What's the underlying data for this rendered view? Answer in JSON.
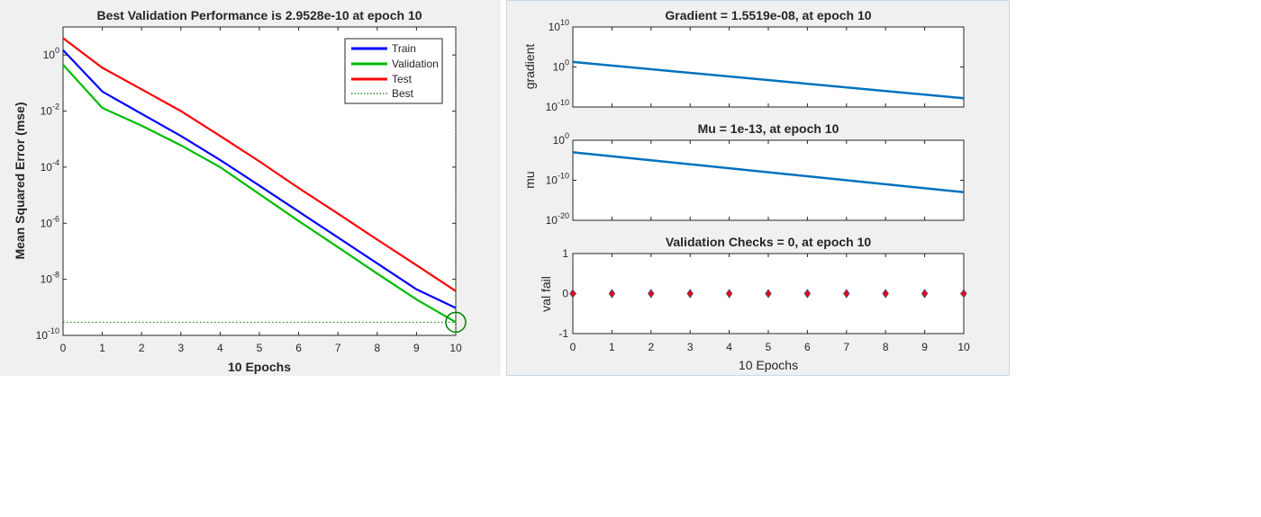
{
  "colors": {
    "train": "#0000ff",
    "validation": "#00bb00",
    "test": "#ff0000",
    "best": "#008000",
    "training_state": "#0072bd",
    "val_fail_marker": "#ff0000",
    "val_fail_edge": "#3a4a9a",
    "panel_bg": "#f0f0f0",
    "axes_bg": "#ffffff"
  },
  "chart_data": [
    {
      "type": "line",
      "title": "Best Validation Performance is 2.9528e-10 at epoch 10",
      "xlabel": "10 Epochs",
      "ylabel": "Mean Squared Error  (mse)",
      "xlim": [
        0,
        10
      ],
      "ylim": [
        1e-10,
        10
      ],
      "yscale": "log",
      "grid": false,
      "legend": "top-right",
      "x_ticks": [
        "0",
        "1",
        "2",
        "3",
        "4",
        "5",
        "6",
        "7",
        "8",
        "9",
        "10"
      ],
      "y_ticks": [
        {
          "base": "10",
          "exp": "0",
          "value": 1
        },
        {
          "base": "10",
          "exp": "-2",
          "value": 0.01
        },
        {
          "base": "10",
          "exp": "-4",
          "value": 0.0001
        },
        {
          "base": "10",
          "exp": "-6",
          "value": 1e-06
        },
        {
          "base": "10",
          "exp": "-8",
          "value": 1e-08
        },
        {
          "base": "10",
          "exp": "-10",
          "value": 1e-10
        }
      ],
      "x": [
        0,
        1,
        2,
        3,
        4,
        5,
        6,
        7,
        8,
        9,
        10
      ],
      "series": [
        {
          "name": "Train",
          "values": [
            1.5,
            0.05,
            0.008,
            0.0013,
            0.00018,
            2.2e-05,
            2.6e-06,
            3.1e-07,
            3.7e-08,
            4.4e-09,
            9.5e-10
          ]
        },
        {
          "name": "Validation",
          "values": [
            0.45,
            0.013,
            0.003,
            0.0006,
            0.0001,
            1.1e-05,
            1.2e-06,
            1.4e-07,
            1.6e-08,
            1.9e-09,
            2.9528e-10
          ]
        },
        {
          "name": "Test",
          "values": [
            4,
            0.35,
            0.06,
            0.01,
            0.0013,
            0.00016,
            1.8e-05,
            2.2e-06,
            2.6e-07,
            3.2e-08,
            3.8e-09
          ]
        },
        {
          "name": "Best",
          "style": "dotted",
          "x": 10,
          "y": 2.9528e-10
        }
      ]
    },
    {
      "type": "line",
      "title": "Gradient = 1.5519e-08, at epoch 10",
      "ylabel": "gradient",
      "xlim": [
        0,
        10
      ],
      "yscale": "log",
      "ylim": [
        1e-10,
        10000000000.0
      ],
      "y_ticks": [
        {
          "base": "10",
          "exp": "10",
          "value": 10000000000.0
        },
        {
          "base": "10",
          "exp": "0",
          "value": 1
        },
        {
          "base": "10",
          "exp": "-10",
          "value": 1e-10
        }
      ],
      "x": [
        0,
        10
      ],
      "values": [
        18,
        1.5519e-08
      ]
    },
    {
      "type": "line",
      "title": "Mu = 1e-13, at epoch 10",
      "ylabel": "mu",
      "xlim": [
        0,
        10
      ],
      "yscale": "log",
      "ylim": [
        1e-20,
        1
      ],
      "y_ticks": [
        {
          "base": "10",
          "exp": "0",
          "value": 1
        },
        {
          "base": "10",
          "exp": "-10",
          "value": 1e-10
        },
        {
          "base": "10",
          "exp": "-20",
          "value": 1e-20
        }
      ],
      "x": [
        0,
        10
      ],
      "values": [
        0.001,
        1e-13
      ]
    },
    {
      "type": "scatter",
      "title": "Validation Checks = 0, at epoch 10",
      "xlabel": "10 Epochs",
      "ylabel": "val fail",
      "xlim": [
        0,
        10
      ],
      "ylim": [
        -1,
        1
      ],
      "x_ticks": [
        "0",
        "1",
        "2",
        "3",
        "4",
        "5",
        "6",
        "7",
        "8",
        "9",
        "10"
      ],
      "y_ticks": [
        {
          "label": "1",
          "value": 1
        },
        {
          "label": "0",
          "value": 0
        },
        {
          "label": "-1",
          "value": -1
        }
      ],
      "x": [
        0,
        1,
        2,
        3,
        4,
        5,
        6,
        7,
        8,
        9,
        10
      ],
      "values": [
        0,
        0,
        0,
        0,
        0,
        0,
        0,
        0,
        0,
        0,
        0
      ]
    }
  ]
}
